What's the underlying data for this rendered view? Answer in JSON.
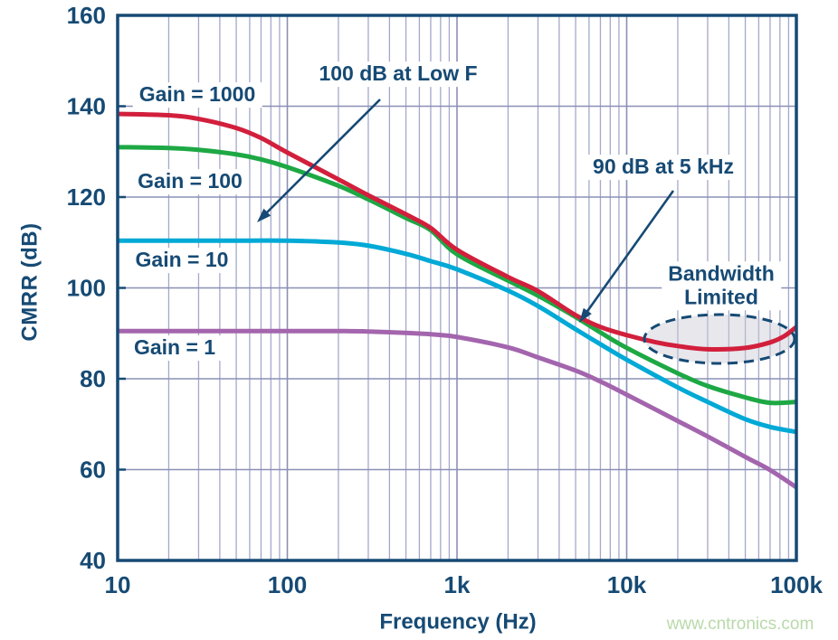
{
  "watermark": "www.cntronics.com",
  "colors": {
    "navy": "#164a74",
    "grid_minor": "#a4a8ca",
    "grid_major": "#8b90b5",
    "frame": "#164a74",
    "ellipse_fill": "#c9c9d4",
    "ellipse_stroke": "#164a74",
    "watermark_green": "#b9d9aa",
    "series_red": "#d21f3c",
    "series_green": "#1da844",
    "series_cyan": "#00a9d6",
    "series_purple": "#a365ad"
  },
  "chart_data": {
    "type": "line",
    "title": "",
    "xlabel": "Frequency (Hz)",
    "ylabel": "CMRR (dB)",
    "x_scale": "log",
    "xlim": [
      10,
      100000
    ],
    "ylim": [
      40,
      160
    ],
    "grid": "horizontal every 20 dB; vertical log decades with 2-9 minor lines",
    "x_ticks": [
      {
        "value": 10,
        "label": "10"
      },
      {
        "value": 100,
        "label": "100"
      },
      {
        "value": 1000,
        "label": "1k"
      },
      {
        "value": 10000,
        "label": "10k"
      },
      {
        "value": 100000,
        "label": "100k"
      }
    ],
    "y_ticks": [
      {
        "value": 160,
        "label": "160"
      },
      {
        "value": 140,
        "label": "140"
      },
      {
        "value": 120,
        "label": "120"
      },
      {
        "value": 100,
        "label": "100"
      },
      {
        "value": 80,
        "label": "80"
      },
      {
        "value": 60,
        "label": "60"
      },
      {
        "value": 40,
        "label": "40"
      }
    ],
    "series": [
      {
        "name": "Gain = 1000",
        "color_key": "series_red",
        "points": [
          [
            10,
            138.3
          ],
          [
            20,
            138.0
          ],
          [
            30,
            137.2
          ],
          [
            50,
            135.2
          ],
          [
            70,
            133.0
          ],
          [
            100,
            129.8
          ],
          [
            200,
            123.9
          ],
          [
            300,
            120.4
          ],
          [
            500,
            116.2
          ],
          [
            700,
            113.2
          ],
          [
            1000,
            108.4
          ],
          [
            2000,
            102.4
          ],
          [
            3000,
            99.3
          ],
          [
            5000,
            94.0
          ],
          [
            7000,
            91.4
          ],
          [
            10000,
            89.6
          ],
          [
            15000,
            88.0
          ],
          [
            20000,
            87.2
          ],
          [
            30000,
            86.5
          ],
          [
            50000,
            86.8
          ],
          [
            70000,
            88.0
          ],
          [
            85000,
            89.4
          ],
          [
            100000,
            91.4
          ]
        ]
      },
      {
        "name": "Gain = 100",
        "color_key": "series_green",
        "points": [
          [
            10,
            131.0
          ],
          [
            20,
            130.8
          ],
          [
            30,
            130.4
          ],
          [
            50,
            129.4
          ],
          [
            70,
            128.3
          ],
          [
            100,
            126.6
          ],
          [
            200,
            122.5
          ],
          [
            300,
            119.5
          ],
          [
            500,
            115.4
          ],
          [
            700,
            112.7
          ],
          [
            1000,
            107.4
          ],
          [
            2000,
            101.6
          ],
          [
            3000,
            98.3
          ],
          [
            5000,
            93.6
          ],
          [
            7000,
            90.2
          ],
          [
            10000,
            86.8
          ],
          [
            20000,
            81.2
          ],
          [
            30000,
            78.4
          ],
          [
            50000,
            75.9
          ],
          [
            70000,
            74.7
          ],
          [
            100000,
            74.9
          ]
        ]
      },
      {
        "name": "Gain = 10",
        "color_key": "series_cyan",
        "points": [
          [
            10,
            110.4
          ],
          [
            50,
            110.4
          ],
          [
            100,
            110.4
          ],
          [
            200,
            110.0
          ],
          [
            300,
            109.3
          ],
          [
            500,
            107.5
          ],
          [
            700,
            105.9
          ],
          [
            1000,
            104.1
          ],
          [
            2000,
            99.4
          ],
          [
            3000,
            96.0
          ],
          [
            5000,
            90.9
          ],
          [
            7000,
            87.6
          ],
          [
            10000,
            84.2
          ],
          [
            20000,
            78.1
          ],
          [
            30000,
            74.9
          ],
          [
            50000,
            71.1
          ],
          [
            70000,
            69.4
          ],
          [
            100000,
            68.3
          ]
        ]
      },
      {
        "name": "Gain = 1",
        "color_key": "series_purple",
        "points": [
          [
            10,
            90.5
          ],
          [
            100,
            90.5
          ],
          [
            200,
            90.5
          ],
          [
            300,
            90.4
          ],
          [
            500,
            90.1
          ],
          [
            700,
            89.8
          ],
          [
            1000,
            89.2
          ],
          [
            2000,
            86.9
          ],
          [
            3000,
            84.7
          ],
          [
            5000,
            81.8
          ],
          [
            7000,
            79.4
          ],
          [
            10000,
            76.5
          ],
          [
            20000,
            70.7
          ],
          [
            30000,
            67.3
          ],
          [
            50000,
            62.8
          ],
          [
            70000,
            59.9
          ],
          [
            100000,
            56.1
          ]
        ]
      }
    ],
    "annotations": {
      "low_f": {
        "text": "100 dB at Low F"
      },
      "khz5": {
        "text": "90 dB at 5 kHz"
      },
      "bandwidth": {
        "line1": "Bandwidth",
        "line2": "Limited"
      }
    }
  }
}
